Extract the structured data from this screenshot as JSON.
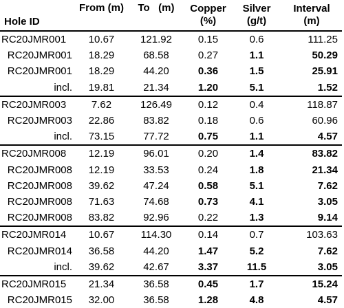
{
  "headers": {
    "hole_id": "Hole ID",
    "from": "From (m)",
    "to": "To   (m)",
    "copper_1": "Copper",
    "copper_2": "(%)",
    "silver_1": "Silver",
    "silver_2": "(g/t)",
    "interval_1": "Interval",
    "interval_2": "(m)"
  },
  "rows": [
    {
      "hole": "RC20JMR001",
      "from": "10.67",
      "to": "121.92",
      "cu": "0.15",
      "ag": "0.6",
      "int": "111.25"
    },
    {
      "hole": "RC20JMR001",
      "from": "18.29",
      "to": "68.58",
      "cu": "0.27",
      "ag": "1.1",
      "int": "50.29"
    },
    {
      "hole": "RC20JMR001",
      "from": "18.29",
      "to": "44.20",
      "cu": "0.36",
      "ag": "1.5",
      "int": "25.91"
    },
    {
      "hole": "incl.",
      "from": "19.81",
      "to": "21.34",
      "cu": "1.20",
      "ag": "5.1",
      "int": "1.52"
    },
    {
      "hole": "RC20JMR003",
      "from": "7.62",
      "to": "126.49",
      "cu": "0.12",
      "ag": "0.4",
      "int": "118.87"
    },
    {
      "hole": "RC20JMR003",
      "from": "22.86",
      "to": "83.82",
      "cu": "0.18",
      "ag": "0.6",
      "int": "60.96"
    },
    {
      "hole": "incl.",
      "from": "73.15",
      "to": "77.72",
      "cu": "0.75",
      "ag": "1.1",
      "int": "4.57"
    },
    {
      "hole": "RC20JMR008",
      "from": "12.19",
      "to": "96.01",
      "cu": "0.20",
      "ag": "1.4",
      "int": "83.82"
    },
    {
      "hole": "RC20JMR008",
      "from": "12.19",
      "to": "33.53",
      "cu": "0.24",
      "ag": "1.8",
      "int": "21.34"
    },
    {
      "hole": "RC20JMR008",
      "from": "39.62",
      "to": "47.24",
      "cu": "0.58",
      "ag": "5.1",
      "int": "7.62"
    },
    {
      "hole": "RC20JMR008",
      "from": "71.63",
      "to": "74.68",
      "cu": "0.73",
      "ag": "4.1",
      "int": "3.05"
    },
    {
      "hole": "RC20JMR008",
      "from": "83.82",
      "to": "92.96",
      "cu": "0.22",
      "ag": "1.3",
      "int": "9.14"
    },
    {
      "hole": "RC20JMR014",
      "from": "10.67",
      "to": "114.30",
      "cu": "0.14",
      "ag": "0.7",
      "int": "103.63"
    },
    {
      "hole": "RC20JMR014",
      "from": "36.58",
      "to": "44.20",
      "cu": "1.47",
      "ag": "5.2",
      "int": "7.62"
    },
    {
      "hole": "incl.",
      "from": "39.62",
      "to": "42.67",
      "cu": "3.37",
      "ag": "11.5",
      "int": "3.05"
    },
    {
      "hole": "RC20JMR015",
      "from": "21.34",
      "to": "36.58",
      "cu": "0.45",
      "ag": "1.7",
      "int": "15.24"
    },
    {
      "hole": "RC20JMR015",
      "from": "32.00",
      "to": "36.58",
      "cu": "1.28",
      "ag": "4.8",
      "int": "4.57"
    }
  ]
}
